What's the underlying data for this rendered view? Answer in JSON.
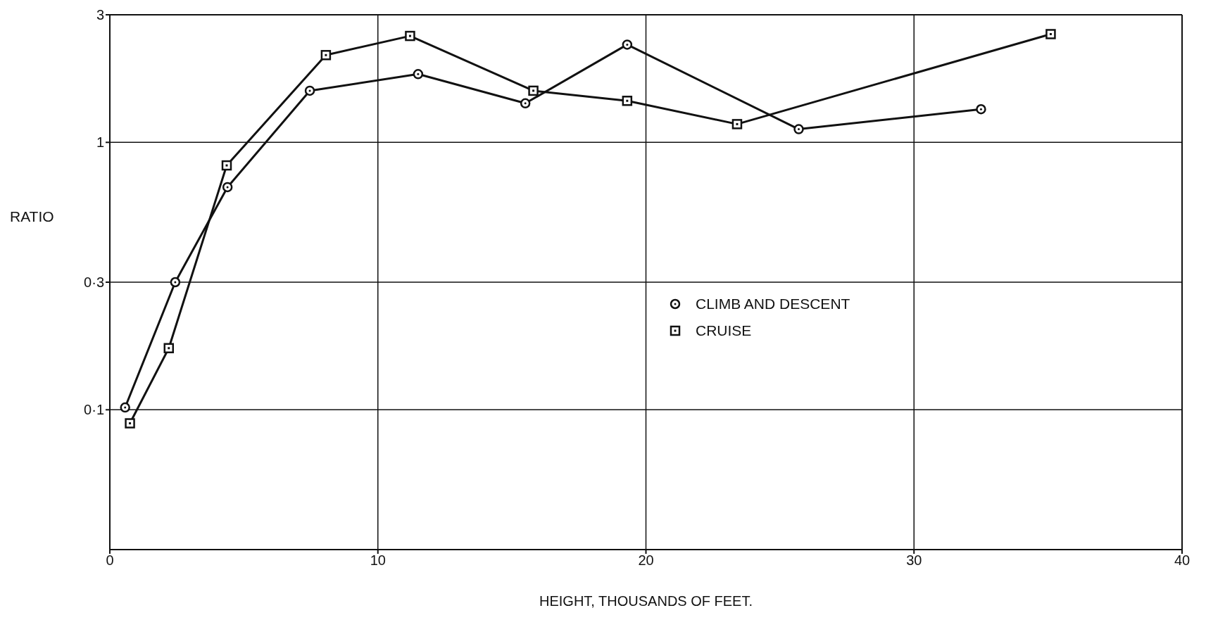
{
  "chart_data": {
    "type": "line",
    "xlabel": "HEIGHT, THOUSANDS OF FEET.",
    "ylabel": "RATIO",
    "xlim": [
      0,
      40
    ],
    "xticks": [
      0,
      10,
      20,
      30,
      40
    ],
    "ylim": [
      0.03,
      3
    ],
    "yticks": [
      {
        "value": 0.1,
        "label": "0·1"
      },
      {
        "value": 0.3,
        "label": "0·3"
      },
      1,
      3
    ],
    "log": "y",
    "grid": true,
    "legend": "right",
    "series": [
      {
        "name": "CLIMB AND DESCENT",
        "color": "#111111",
        "marker": "circle",
        "x": [
          0.57,
          2.44,
          4.39,
          7.46,
          11.5,
          15.5,
          19.3,
          25.7,
          32.5
        ],
        "values": [
          0.102,
          0.3,
          0.68,
          1.56,
          1.8,
          1.4,
          2.32,
          1.12,
          1.33
        ]
      },
      {
        "name": "CRUISE",
        "color": "#111111",
        "marker": "square",
        "x": [
          0.75,
          2.2,
          4.36,
          8.06,
          11.2,
          15.8,
          19.3,
          23.4,
          35.1
        ],
        "values": [
          0.089,
          0.17,
          0.82,
          2.12,
          2.5,
          1.56,
          1.43,
          1.17,
          2.54
        ]
      }
    ]
  }
}
